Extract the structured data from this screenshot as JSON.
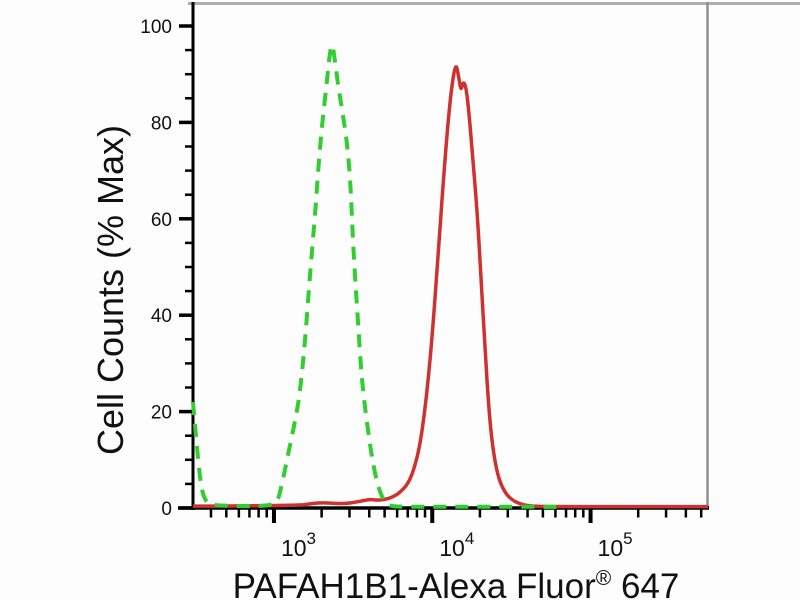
{
  "figure": {
    "kind": "flow-cytometry-histogram",
    "background": "#fdfdfd",
    "frame": {
      "axis_color": "#000000",
      "top_border_color": "#adadad",
      "right_border_color": "#8f8f8f"
    }
  },
  "chart_data": {
    "type": "line",
    "title": "",
    "grid": false,
    "legend": null,
    "x_axis": {
      "scale": "log10",
      "min": 308,
      "max": 552000,
      "label": {
        "main": "PAFAH1B1-Alexa Fluor",
        "sup": "®",
        "suffix": " 647",
        "full": "PAFAH1B1-Alexa Fluor® 647"
      },
      "decade_ticks": [
        {
          "value": 1000,
          "base": "10",
          "exp": "3"
        },
        {
          "value": 10000,
          "base": "10",
          "exp": "4"
        },
        {
          "value": 100000,
          "base": "10",
          "exp": "5"
        }
      ]
    },
    "y_axis": {
      "label": "Cell Counts (% Max)",
      "min": 0,
      "max": 100,
      "major_ticks": [
        0,
        20,
        40,
        60,
        80,
        100
      ],
      "minor_tick_step": 5
    },
    "series": [
      {
        "name": "red-solid",
        "style": "solid",
        "color": "#cf3030",
        "points": [
          [
            308,
            0.4
          ],
          [
            1459,
            0.5
          ],
          [
            1688,
            0.9
          ],
          [
            1953,
            1.1
          ],
          [
            2258,
            1.0
          ],
          [
            2612,
            0.9
          ],
          [
            3021,
            1.0
          ],
          [
            3494,
            1.4
          ],
          [
            4041,
            1.8
          ],
          [
            4539,
            1.6
          ],
          [
            5027,
            1.8
          ],
          [
            5565,
            2.2
          ],
          [
            6250,
            3.2
          ],
          [
            7023,
            5
          ],
          [
            7662,
            8
          ],
          [
            8362,
            13
          ],
          [
            9124,
            22
          ],
          [
            9956,
            35
          ],
          [
            10863,
            52
          ],
          [
            11686,
            67
          ],
          [
            12569,
            80
          ],
          [
            13320,
            88
          ],
          [
            14119,
            92.5
          ],
          [
            14750,
            89
          ],
          [
            15185,
            86.5
          ],
          [
            15633,
            88.5
          ],
          [
            16330,
            87.5
          ],
          [
            17059,
            82
          ],
          [
            18080,
            72
          ],
          [
            19161,
            62
          ],
          [
            20317,
            48
          ],
          [
            21540,
            33
          ],
          [
            22829,
            20
          ],
          [
            24196,
            12
          ],
          [
            26025,
            6.5
          ],
          [
            28392,
            3.5
          ],
          [
            31430,
            1.8
          ],
          [
            35810,
            0.8
          ],
          [
            41410,
            0.4
          ],
          [
            51510,
            0.3
          ],
          [
            114700,
            0.3
          ],
          [
            237200,
            0.3
          ],
          [
            551700,
            0.3
          ]
        ]
      },
      {
        "name": "green-dashed",
        "style": "dashed",
        "color": "#31cd31",
        "points": [
          [
            308,
            22
          ],
          [
            327,
            12
          ],
          [
            347,
            4
          ],
          [
            374,
            1
          ],
          [
            429,
            0.5
          ],
          [
            616,
            0.4
          ],
          [
            884,
            0.4
          ],
          [
            1045,
            1
          ],
          [
            1107,
            4
          ],
          [
            1191,
            9
          ],
          [
            1281,
            14
          ],
          [
            1378,
            19
          ],
          [
            1459,
            24
          ],
          [
            1567,
            34
          ],
          [
            1658,
            45
          ],
          [
            1755,
            55
          ],
          [
            1831,
            62
          ],
          [
            1910,
            71
          ],
          [
            2020,
            80
          ],
          [
            2137,
            87
          ],
          [
            2228,
            93
          ],
          [
            2324,
            97
          ],
          [
            2423,
            93
          ],
          [
            2562,
            87
          ],
          [
            2709,
            82
          ],
          [
            2864,
            77
          ],
          [
            3028,
            69
          ],
          [
            3158,
            55
          ],
          [
            3294,
            45
          ],
          [
            3435,
            36
          ],
          [
            3583,
            27
          ],
          [
            3789,
            20
          ],
          [
            4007,
            14
          ],
          [
            4237,
            9
          ],
          [
            4541,
            4.5
          ],
          [
            4927,
            1.5
          ],
          [
            5346,
            0.5
          ],
          [
            5929,
            0.3
          ],
          [
            7929,
            0.25
          ],
          [
            12270,
            0.25
          ],
          [
            18990,
            0.25
          ],
          [
            29380,
            0.25
          ],
          [
            48900,
            0.25
          ],
          [
            64100,
            0.2
          ]
        ]
      }
    ]
  }
}
